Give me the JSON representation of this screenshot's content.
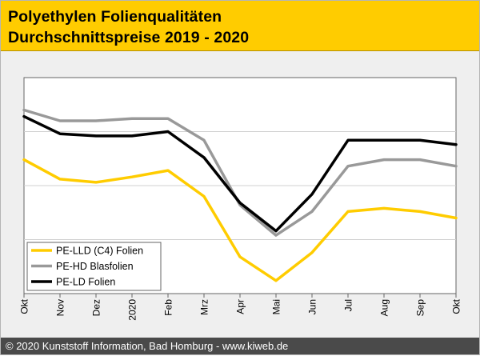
{
  "header": {
    "title_line1": "Polyethylen Folienqualitäten",
    "title_line2": "Durchschnittspreise 2019 - 2020"
  },
  "footer": {
    "copyright": "© 2020 Kunststoff Information, Bad Homburg - www.kiweb.de"
  },
  "colors": {
    "header_bg": "#ffcc00",
    "pe_lld": "#ffcc00",
    "pe_hd": "#999999",
    "pe_ld": "#000000"
  },
  "chart_data": {
    "type": "line",
    "title": "Polyethylen Folienqualitäten Durchschnittspreise 2019 - 2020",
    "xlabel": "",
    "ylabel": "",
    "categories": [
      "Okt",
      "Nov",
      "Dez",
      "2020",
      "Feb",
      "Mrz",
      "Apr",
      "Mai",
      "Jun",
      "Jul",
      "Aug",
      "Sep",
      "Okt"
    ],
    "ylim": [
      0,
      100
    ],
    "grid": true,
    "legend_position": "bottom-left",
    "series": [
      {
        "name": "PE-LLD (C4) Folien",
        "color": "#ffcc00",
        "values": [
          62,
          53,
          51.5,
          54,
          57,
          45,
          17,
          6,
          19,
          38,
          39.5,
          38,
          35
        ]
      },
      {
        "name": "PE-HD Blasfolien",
        "color": "#999999",
        "values": [
          85,
          80,
          80,
          81,
          81,
          71,
          41,
          27,
          38,
          59,
          62,
          62,
          59
        ]
      },
      {
        "name": "PE-LD Folien",
        "color": "#000000",
        "values": [
          82,
          74,
          73,
          73,
          75,
          63,
          42,
          29,
          46,
          71,
          71,
          71,
          69
        ]
      }
    ]
  }
}
